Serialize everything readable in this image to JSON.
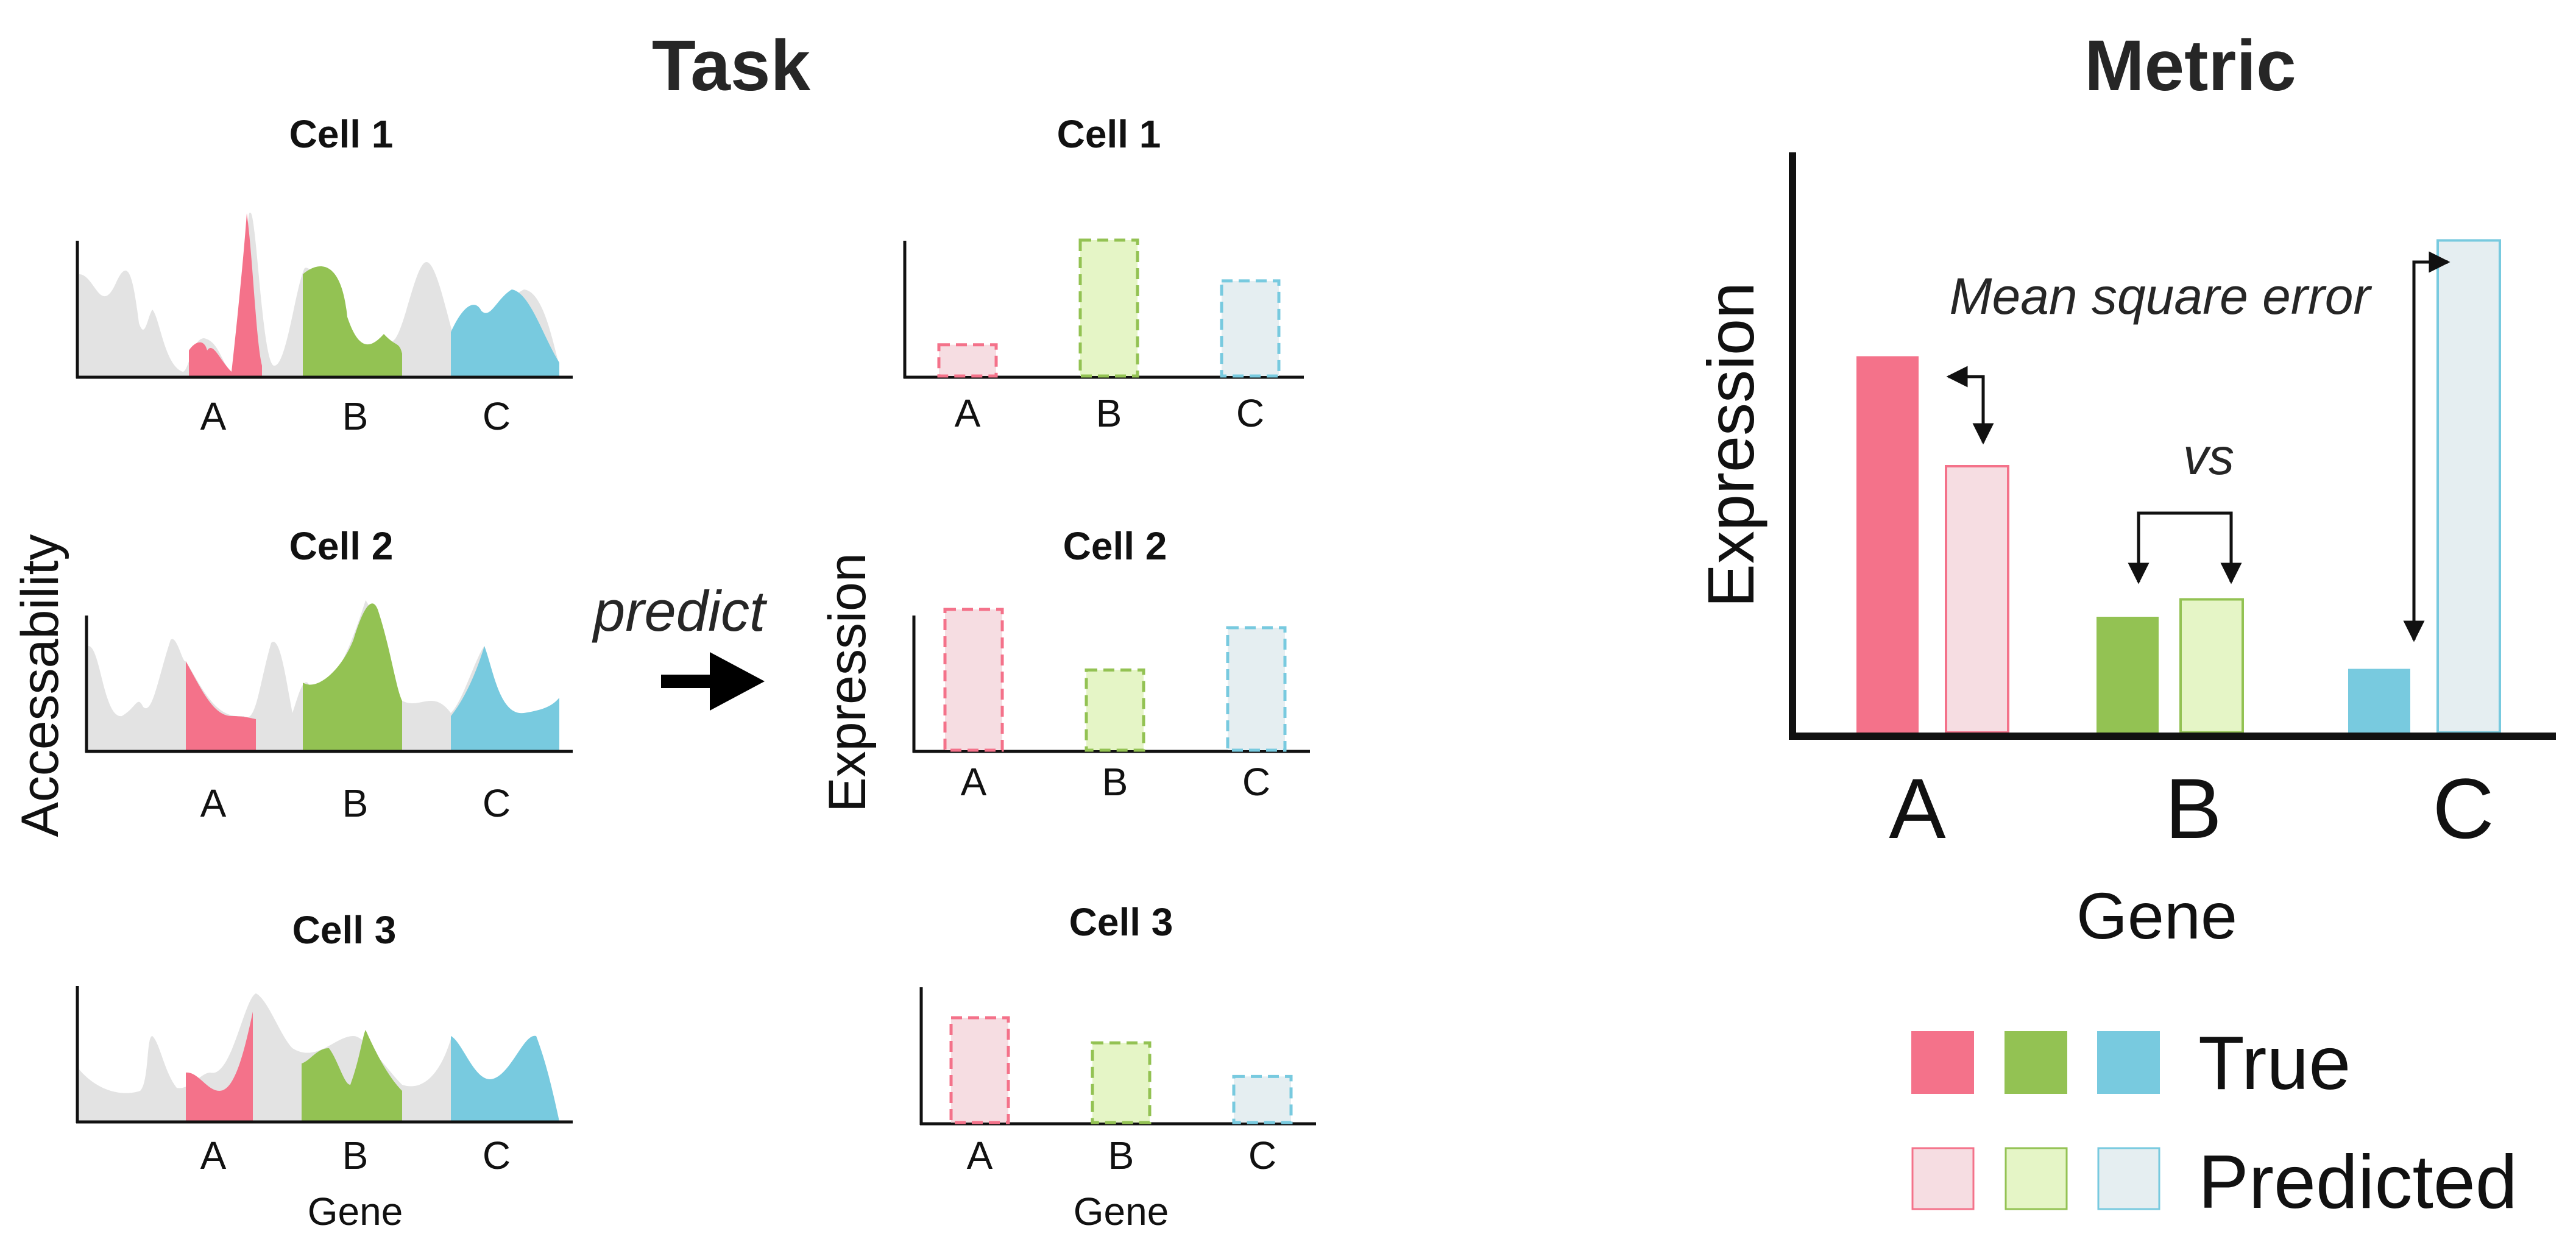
{
  "task": {
    "title": "Task",
    "predict_label": "predict",
    "accessibility_axis_label": "Accessability",
    "expression_axis_label": "Expression",
    "gene_label": "Gene",
    "cells": [
      {
        "name": "Cell 1",
        "genes": [
          "A",
          "B",
          "C"
        ],
        "predicted": [
          0.23,
          1.0,
          0.7
        ]
      },
      {
        "name": "Cell 2",
        "genes": [
          "A",
          "B",
          "C"
        ],
        "predicted": [
          1.0,
          0.57,
          0.87
        ]
      },
      {
        "name": "Cell 3",
        "genes": [
          "A",
          "B",
          "C"
        ],
        "predicted": [
          1.0,
          0.76,
          0.44
        ]
      }
    ]
  },
  "metric": {
    "title": "Metric",
    "y_label": "Expression",
    "x_label": "Gene",
    "annotation": "Mean square error",
    "vs_label": "vs",
    "chart_data": {
      "type": "bar",
      "categories": [
        "A",
        "B",
        "C"
      ],
      "series": [
        {
          "name": "True",
          "values": [
            0.65,
            0.2,
            0.11
          ]
        },
        {
          "name": "Predicted",
          "values": [
            0.46,
            0.23,
            0.85
          ]
        }
      ],
      "xlabel": "Gene",
      "ylabel": "Expression",
      "ylim": [
        0,
        1
      ]
    },
    "legend": {
      "true_label": "True",
      "predicted_label": "Predicted"
    }
  },
  "colors": {
    "gene_a": "#f4728a",
    "gene_b": "#93c253",
    "gene_c": "#78cadf",
    "gene_a_light": "#f6dde2",
    "gene_b_light": "#e5f5c6",
    "gene_c_light": "#e5eef1",
    "background_peaks": "#e3e3e3"
  }
}
